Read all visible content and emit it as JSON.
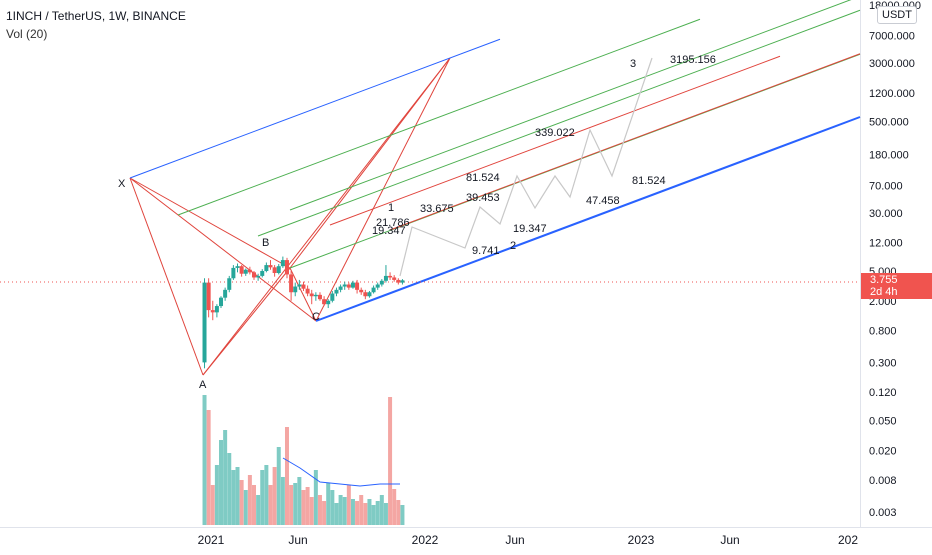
{
  "header": {
    "title": "1INCH / TetherUS, 1W, BINANCE",
    "volume_label": "Vol (20)"
  },
  "price_axis": {
    "currency": "USDT",
    "ticks": [
      "18000.000",
      "7000.000",
      "3000.000",
      "1200.000",
      "500.000",
      "180.000",
      "70.000",
      "30.000",
      "12.000",
      "5.000",
      "2.000",
      "0.800",
      "0.300",
      "0.120",
      "0.050",
      "0.020",
      "0.008",
      "0.003"
    ]
  },
  "last_price": {
    "value": "3.755",
    "countdown": "2d 4h",
    "color": "#f0544f"
  },
  "time_axis": {
    "ticks": [
      "2021",
      "Jun",
      "2022",
      "Jun",
      "2023",
      "Jun",
      "202"
    ]
  },
  "colors": {
    "candle_up": "#26a69a",
    "candle_down": "#ef5350",
    "pitchfork_red": "#e0443c",
    "pitchfork_green": "#4caf50",
    "pitchfork_blue": "#2962ff",
    "projection_path": "#c8c8c8",
    "volume_ma": "#2962ff"
  },
  "chart_data": {
    "type": "candlestick",
    "title": "1INCH / TetherUS, 1W, BINANCE",
    "scale": "log",
    "points": [
      {
        "label": "X",
        "price": 70
      },
      {
        "label": "A",
        "price": 0.3
      },
      {
        "label": "B",
        "price": 8
      },
      {
        "label": "C",
        "price": 1.1
      }
    ],
    "wave_labels": [
      "1",
      "2",
      "3"
    ],
    "price_annotations": [
      "21.786",
      "19.347",
      "33.675",
      "9.741",
      "81.524",
      "39.453",
      "19.347",
      "339.022",
      "47.458",
      "81.524",
      "3195.156"
    ],
    "candles": [
      {
        "date": "2020-12-21",
        "o": 0.3,
        "h": 4.0,
        "l": 0.25,
        "c": 3.5
      },
      {
        "date": "2020-12-28",
        "o": 3.5,
        "h": 4.0,
        "l": 1.2,
        "c": 1.5
      },
      {
        "date": "2021-01-04",
        "o": 1.5,
        "h": 2.0,
        "l": 1.1,
        "c": 1.4
      },
      {
        "date": "2021-01-11",
        "o": 1.4,
        "h": 1.8,
        "l": 1.2,
        "c": 1.7
      },
      {
        "date": "2021-01-18",
        "o": 1.7,
        "h": 2.3,
        "l": 1.6,
        "c": 2.2
      },
      {
        "date": "2021-01-25",
        "o": 2.2,
        "h": 3.0,
        "l": 2.0,
        "c": 2.8
      },
      {
        "date": "2021-02-01",
        "o": 2.8,
        "h": 4.3,
        "l": 2.6,
        "c": 4.0
      },
      {
        "date": "2021-02-08",
        "o": 4.0,
        "h": 6.0,
        "l": 3.8,
        "c": 5.5
      },
      {
        "date": "2021-02-15",
        "o": 5.5,
        "h": 6.3,
        "l": 4.8,
        "c": 5.8
      },
      {
        "date": "2021-02-22",
        "o": 5.8,
        "h": 6.0,
        "l": 4.2,
        "c": 4.6
      },
      {
        "date": "2021-03-01",
        "o": 4.6,
        "h": 5.4,
        "l": 4.3,
        "c": 5.2
      },
      {
        "date": "2021-03-08",
        "o": 5.2,
        "h": 5.7,
        "l": 4.5,
        "c": 4.8
      },
      {
        "date": "2021-03-15",
        "o": 4.8,
        "h": 5.0,
        "l": 3.8,
        "c": 4.1
      },
      {
        "date": "2021-03-22",
        "o": 4.1,
        "h": 4.6,
        "l": 3.7,
        "c": 4.3
      },
      {
        "date": "2021-03-29",
        "o": 4.3,
        "h": 5.3,
        "l": 4.1,
        "c": 5.0
      },
      {
        "date": "2021-04-05",
        "o": 5.0,
        "h": 6.5,
        "l": 4.8,
        "c": 6.0
      },
      {
        "date": "2021-04-12",
        "o": 6.0,
        "h": 7.0,
        "l": 5.2,
        "c": 5.6
      },
      {
        "date": "2021-04-19",
        "o": 5.6,
        "h": 6.0,
        "l": 4.2,
        "c": 4.7
      },
      {
        "date": "2021-04-26",
        "o": 4.7,
        "h": 6.2,
        "l": 4.5,
        "c": 5.8
      },
      {
        "date": "2021-05-03",
        "o": 5.8,
        "h": 7.8,
        "l": 5.5,
        "c": 7.0
      },
      {
        "date": "2021-05-10",
        "o": 7.0,
        "h": 7.5,
        "l": 4.0,
        "c": 4.5
      },
      {
        "date": "2021-05-17",
        "o": 4.5,
        "h": 5.0,
        "l": 2.0,
        "c": 2.6
      },
      {
        "date": "2021-05-24",
        "o": 2.6,
        "h": 3.5,
        "l": 2.3,
        "c": 3.1
      },
      {
        "date": "2021-05-31",
        "o": 3.1,
        "h": 3.8,
        "l": 2.8,
        "c": 3.3
      },
      {
        "date": "2021-06-07",
        "o": 3.3,
        "h": 3.6,
        "l": 2.7,
        "c": 2.9
      },
      {
        "date": "2021-06-14",
        "o": 2.9,
        "h": 3.2,
        "l": 2.3,
        "c": 2.5
      },
      {
        "date": "2021-06-21",
        "o": 2.5,
        "h": 2.8,
        "l": 1.8,
        "c": 2.3
      },
      {
        "date": "2021-06-28",
        "o": 2.3,
        "h": 2.6,
        "l": 2.0,
        "c": 2.4
      },
      {
        "date": "2021-07-05",
        "o": 2.4,
        "h": 2.6,
        "l": 2.0,
        "c": 2.1
      },
      {
        "date": "2021-07-12",
        "o": 2.1,
        "h": 2.3,
        "l": 1.7,
        "c": 1.8
      },
      {
        "date": "2021-07-19",
        "o": 1.8,
        "h": 2.1,
        "l": 1.6,
        "c": 2.0
      },
      {
        "date": "2021-07-26",
        "o": 2.0,
        "h": 2.7,
        "l": 1.9,
        "c": 2.5
      },
      {
        "date": "2021-08-02",
        "o": 2.5,
        "h": 3.0,
        "l": 2.3,
        "c": 2.8
      },
      {
        "date": "2021-08-09",
        "o": 2.8,
        "h": 3.3,
        "l": 2.6,
        "c": 3.1
      },
      {
        "date": "2021-08-16",
        "o": 3.1,
        "h": 3.6,
        "l": 2.8,
        "c": 3.3
      },
      {
        "date": "2021-08-23",
        "o": 3.3,
        "h": 3.5,
        "l": 2.8,
        "c": 3.0
      },
      {
        "date": "2021-08-30",
        "o": 3.0,
        "h": 3.7,
        "l": 2.9,
        "c": 3.5
      },
      {
        "date": "2021-09-06",
        "o": 3.5,
        "h": 3.8,
        "l": 2.5,
        "c": 2.8
      },
      {
        "date": "2021-09-13",
        "o": 2.8,
        "h": 3.0,
        "l": 2.4,
        "c": 2.6
      },
      {
        "date": "2021-09-20",
        "o": 2.6,
        "h": 2.8,
        "l": 2.1,
        "c": 2.3
      },
      {
        "date": "2021-09-27",
        "o": 2.3,
        "h": 2.7,
        "l": 2.2,
        "c": 2.6
      },
      {
        "date": "2021-10-04",
        "o": 2.6,
        "h": 3.2,
        "l": 2.5,
        "c": 3.0
      },
      {
        "date": "2021-10-11",
        "o": 3.0,
        "h": 3.5,
        "l": 2.8,
        "c": 3.3
      },
      {
        "date": "2021-10-18",
        "o": 3.3,
        "h": 3.9,
        "l": 3.1,
        "c": 3.7
      },
      {
        "date": "2021-10-25",
        "o": 3.7,
        "h": 6.0,
        "l": 3.5,
        "c": 4.3
      },
      {
        "date": "2021-11-01",
        "o": 4.3,
        "h": 4.8,
        "l": 3.8,
        "c": 4.1
      },
      {
        "date": "2021-11-08",
        "o": 4.1,
        "h": 4.4,
        "l": 3.6,
        "c": 3.8
      },
      {
        "date": "2021-11-15",
        "o": 3.8,
        "h": 4.0,
        "l": 3.3,
        "c": 3.5
      },
      {
        "date": "2021-11-22",
        "o": 3.5,
        "h": 3.9,
        "l": 3.3,
        "c": 3.755
      }
    ]
  }
}
